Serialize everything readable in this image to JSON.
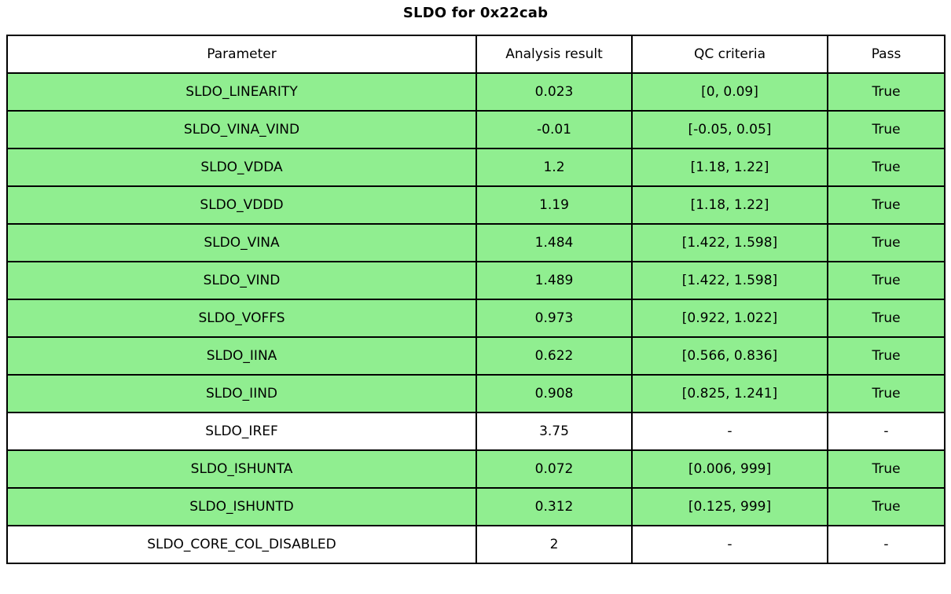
{
  "title": "SLDO for 0x22cab",
  "colors": {
    "pass_row_green": "#90ee90",
    "neutral_row_white": "#ffffff",
    "border": "#000000",
    "text": "#000000"
  },
  "chart_data": {
    "type": "table",
    "title": "SLDO for 0x22cab",
    "columns": [
      "Parameter",
      "Analysis result",
      "QC criteria",
      "Pass"
    ],
    "rows": [
      {
        "parameter": "SLDO_LINEARITY",
        "analysis_result": "0.023",
        "qc_criteria": "[0, 0.09]",
        "pass": "True",
        "highlight": "green"
      },
      {
        "parameter": "SLDO_VINA_VIND",
        "analysis_result": "-0.01",
        "qc_criteria": "[-0.05, 0.05]",
        "pass": "True",
        "highlight": "green"
      },
      {
        "parameter": "SLDO_VDDA",
        "analysis_result": "1.2",
        "qc_criteria": "[1.18, 1.22]",
        "pass": "True",
        "highlight": "green"
      },
      {
        "parameter": "SLDO_VDDD",
        "analysis_result": "1.19",
        "qc_criteria": "[1.18, 1.22]",
        "pass": "True",
        "highlight": "green"
      },
      {
        "parameter": "SLDO_VINA",
        "analysis_result": "1.484",
        "qc_criteria": "[1.422, 1.598]",
        "pass": "True",
        "highlight": "green"
      },
      {
        "parameter": "SLDO_VIND",
        "analysis_result": "1.489",
        "qc_criteria": "[1.422, 1.598]",
        "pass": "True",
        "highlight": "green"
      },
      {
        "parameter": "SLDO_VOFFS",
        "analysis_result": "0.973",
        "qc_criteria": "[0.922, 1.022]",
        "pass": "True",
        "highlight": "green"
      },
      {
        "parameter": "SLDO_IINA",
        "analysis_result": "0.622",
        "qc_criteria": "[0.566, 0.836]",
        "pass": "True",
        "highlight": "green"
      },
      {
        "parameter": "SLDO_IIND",
        "analysis_result": "0.908",
        "qc_criteria": "[0.825, 1.241]",
        "pass": "True",
        "highlight": "green"
      },
      {
        "parameter": "SLDO_IREF",
        "analysis_result": "3.75",
        "qc_criteria": "-",
        "pass": "-",
        "highlight": "white"
      },
      {
        "parameter": "SLDO_ISHUNTA",
        "analysis_result": "0.072",
        "qc_criteria": "[0.006, 999]",
        "pass": "True",
        "highlight": "green"
      },
      {
        "parameter": "SLDO_ISHUNTD",
        "analysis_result": "0.312",
        "qc_criteria": "[0.125, 999]",
        "pass": "True",
        "highlight": "green"
      },
      {
        "parameter": "SLDO_CORE_COL_DISABLED",
        "analysis_result": "2",
        "qc_criteria": "-",
        "pass": "-",
        "highlight": "white"
      }
    ]
  }
}
